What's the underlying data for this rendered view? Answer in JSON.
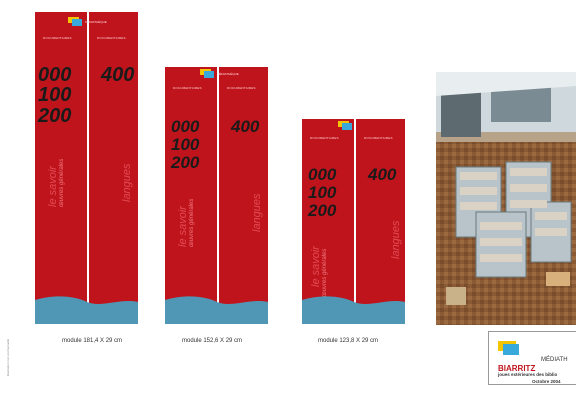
{
  "panels": [
    {
      "small_label": "DOCUMENTAIRES",
      "logo_text": "MÉDIATHÈQUE",
      "numbers_left": [
        "000",
        "100",
        "200"
      ],
      "number_right": "400",
      "vertical_big_left": "le savoir",
      "vertical_small_left": "œuvres générales",
      "vertical_big_right": "langues",
      "caption": "module 181,4 X 29 cm"
    },
    {
      "small_label": "DOCUMENTAIRES",
      "logo_text": "MÉDIATHÈQUE",
      "numbers_left": [
        "000",
        "100",
        "200"
      ],
      "number_right": "400",
      "vertical_big_left": "le savoir",
      "vertical_small_left": "œuvres générales",
      "vertical_big_right": "langues",
      "caption": "module 152,6 X 29 cm"
    },
    {
      "small_label": "DOCUMENTAIRES",
      "logo_text": "MÉDIATHÈQUE",
      "numbers_left": [
        "000",
        "100",
        "200"
      ],
      "number_right": "400",
      "vertical_big_left": "le savoir",
      "vertical_small_left": "œuvres générales",
      "vertical_big_right": "langues",
      "caption": "module 123,8 X 29 cm"
    }
  ],
  "side_note": "illustration non contractuelle",
  "card": {
    "brand_top": "MÉDIATH",
    "brand_city": "BIARRITZ",
    "subtitle": "joues extérieures des biblio",
    "date": "Octobre 2004"
  },
  "colors": {
    "panel_red": "#c0141c",
    "wave_blue": "#4f97b4"
  }
}
